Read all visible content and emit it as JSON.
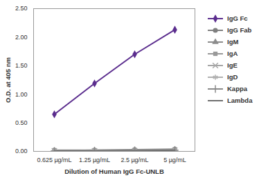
{
  "chart_data": {
    "type": "line",
    "x_label": "Dilution of Human IgG Fc-UNLB",
    "y_label": "O.D. at 405 nm",
    "categories": [
      "0.625 µg/mL",
      "1.25 µg/mL",
      "2.5 µg/mL",
      "5 µg/mL"
    ],
    "series": [
      {
        "name": "IgG Fc",
        "color": "#5b2d8e",
        "marker": "diamond",
        "values": [
          0.65,
          1.19,
          1.7,
          2.13
        ]
      },
      {
        "name": "IgG Fab",
        "color": "#7f7f7f",
        "marker": "circle",
        "values": [
          0.02,
          0.02,
          0.03,
          0.04
        ]
      },
      {
        "name": "IgM",
        "color": "#8c8c8c",
        "marker": "triangle",
        "values": [
          0.01,
          0.02,
          0.02,
          0.03
        ]
      },
      {
        "name": "IgA",
        "color": "#999999",
        "marker": "square",
        "values": [
          0.01,
          0.01,
          0.02,
          0.03
        ]
      },
      {
        "name": "IgE",
        "color": "#a6a6a6",
        "marker": "times",
        "values": [
          0.01,
          0.01,
          0.01,
          0.02
        ]
      },
      {
        "name": "IgD",
        "color": "#b0b0b0",
        "marker": "asterisk",
        "values": [
          0.01,
          0.01,
          0.01,
          0.02
        ]
      },
      {
        "name": "Kappa",
        "color": "#8a8a8a",
        "marker": "plus",
        "values": [
          0.01,
          0.01,
          0.02,
          0.02
        ]
      },
      {
        "name": "Lambda",
        "color": "#6e6e6e",
        "marker": "none",
        "values": [
          0.01,
          0.01,
          0.01,
          0.02
        ]
      }
    ],
    "ylim": [
      0,
      2.5
    ],
    "yticks": [
      {
        "value": 0,
        "label": "0.00"
      },
      {
        "value": 0.5,
        "label": "0.50"
      },
      {
        "value": 1,
        "label": "1.00"
      },
      {
        "value": 1.5,
        "label": "1.50"
      },
      {
        "value": 2,
        "label": "2.00"
      },
      {
        "value": 2.5,
        "label": "2.50"
      }
    ],
    "grid": false,
    "legend": "right"
  }
}
